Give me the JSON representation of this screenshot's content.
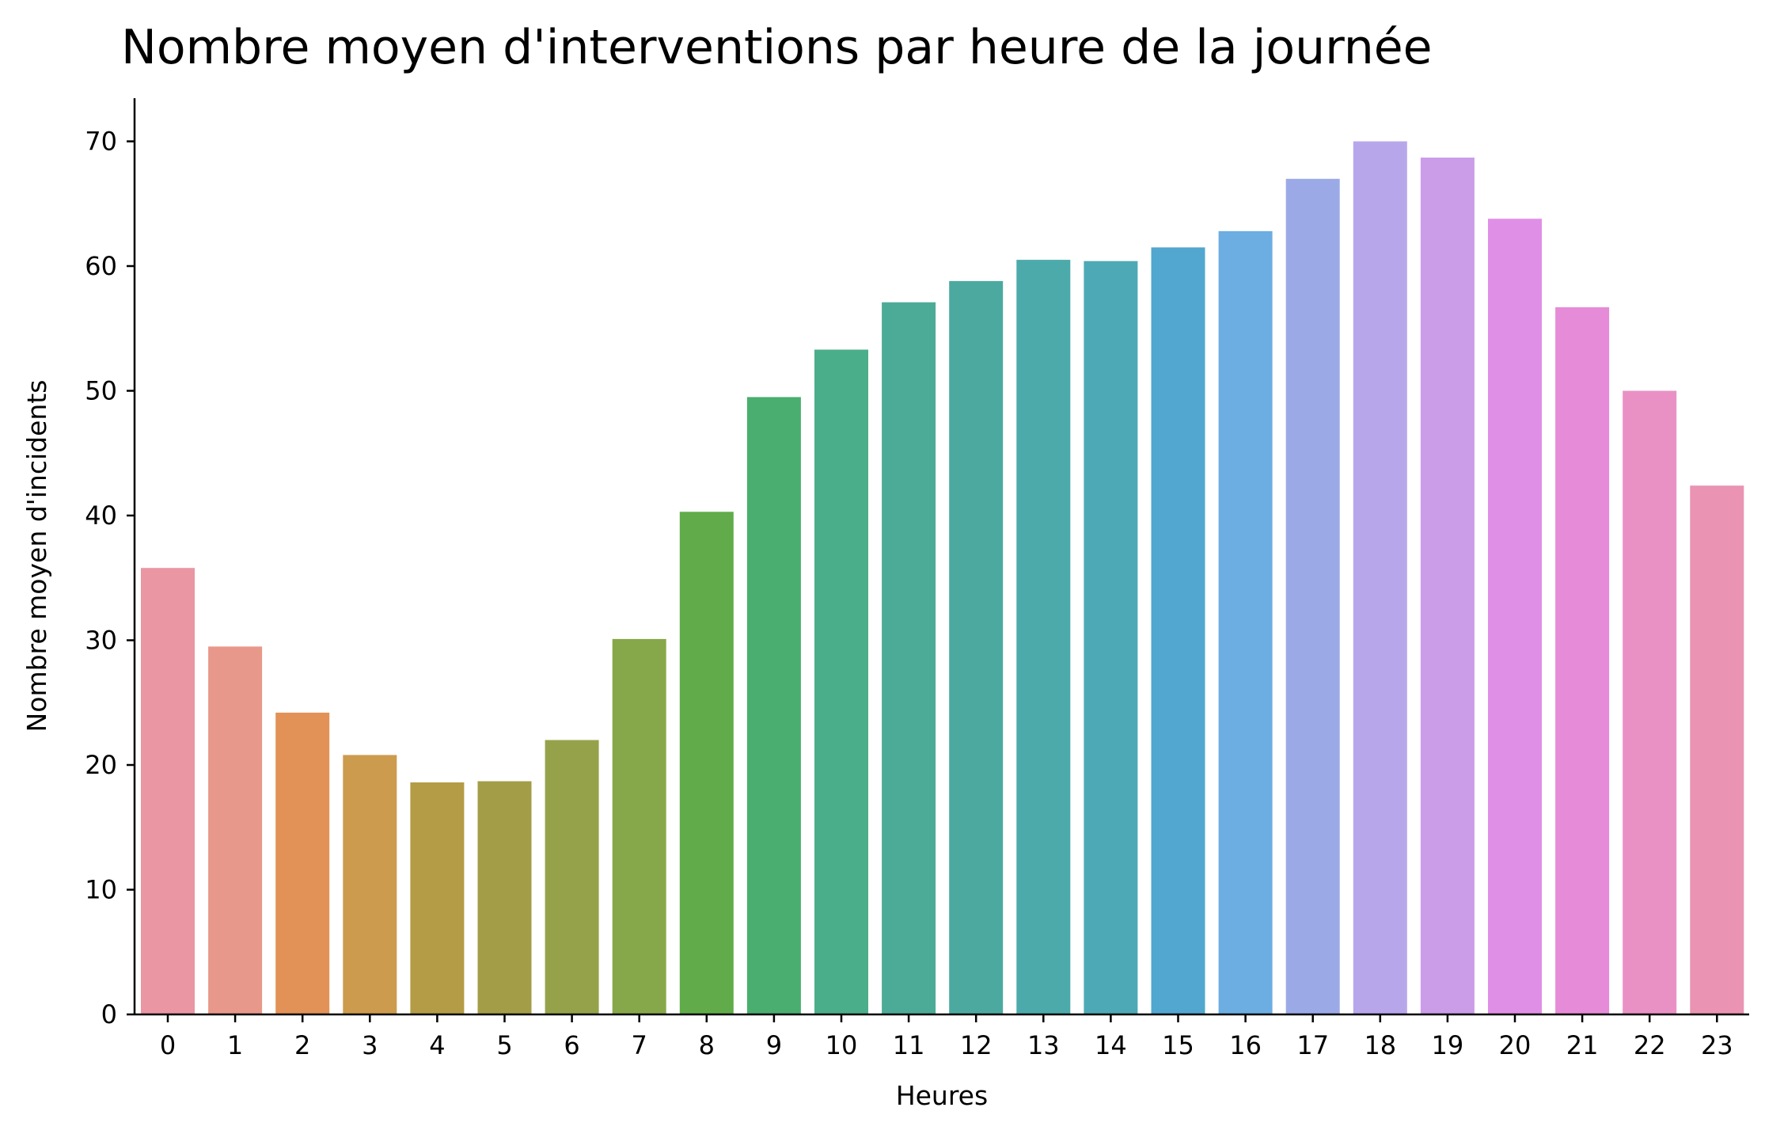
{
  "chart_data": {
    "type": "bar",
    "title": "Nombre moyen d'interventions par heure de la journée",
    "xlabel": "Heures",
    "ylabel": "Nombre moyen d'incidents",
    "ylim": [
      0,
      73.5
    ],
    "yticks": [
      0,
      10,
      20,
      30,
      40,
      50,
      60,
      70
    ],
    "grid": false,
    "categories": [
      "0",
      "1",
      "2",
      "3",
      "4",
      "5",
      "6",
      "7",
      "8",
      "9",
      "10",
      "11",
      "12",
      "13",
      "14",
      "15",
      "16",
      "17",
      "18",
      "19",
      "20",
      "21",
      "22",
      "23"
    ],
    "values": [
      35.8,
      29.5,
      24.2,
      20.8,
      18.6,
      18.7,
      22.0,
      30.1,
      40.3,
      49.5,
      53.3,
      57.1,
      58.8,
      60.5,
      60.4,
      61.5,
      62.8,
      67.0,
      70.0,
      68.7,
      63.8,
      56.7,
      50.0,
      42.4
    ],
    "colors": [
      "#ea96a3",
      "#e8988a",
      "#e29257",
      "#cd9b4d",
      "#b49b46",
      "#a49d47",
      "#96a24a",
      "#87a84a",
      "#61ab4a",
      "#49ae6f",
      "#4bae8a",
      "#4cab97",
      "#4ca9a0",
      "#4caaaa",
      "#4da9b5",
      "#51a7cf",
      "#6cade2",
      "#9baae7",
      "#b7a7ea",
      "#cb9ce8",
      "#e08fe6",
      "#e68bd7",
      "#e991c5",
      "#ea93b2"
    ]
  }
}
